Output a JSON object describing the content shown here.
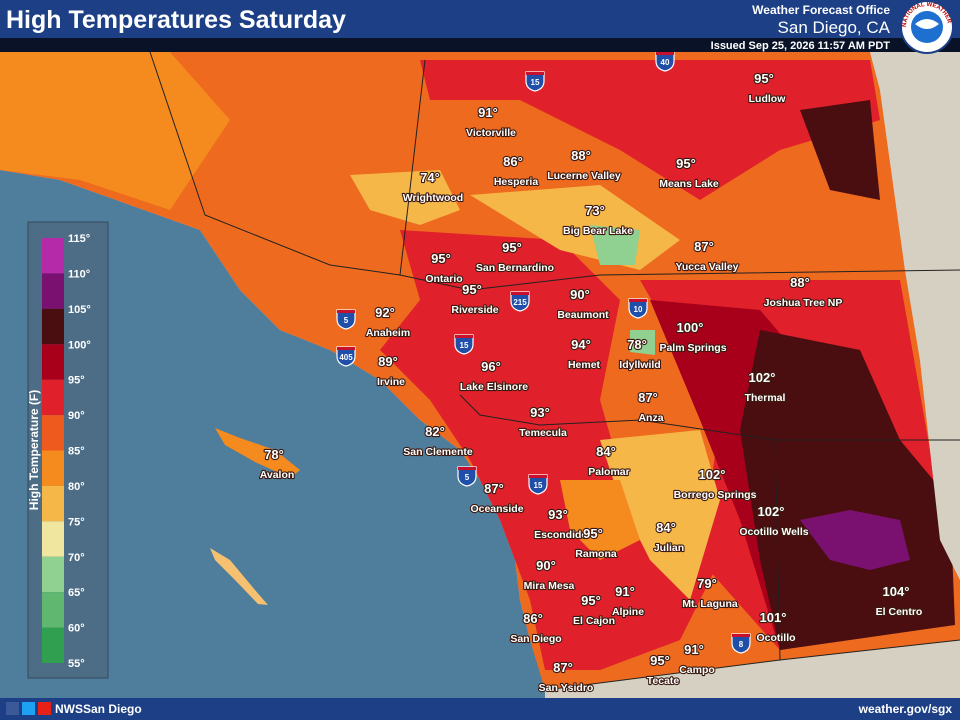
{
  "header": {
    "title": "High Temperatures Saturday",
    "office": "Weather Forecast Office",
    "location": "San Diego, CA",
    "issued": "Issued Sep 25, 2026 11:57 AM PDT",
    "logo": "NATIONAL WEATHER SERVICE"
  },
  "legend": {
    "title": "High Temperature (F)",
    "ticks": [
      "115°",
      "110°",
      "105°",
      "100°",
      "95°",
      "90°",
      "85°",
      "80°",
      "75°",
      "70°",
      "65°",
      "60°",
      "55°"
    ]
  },
  "cities": [
    {
      "temp": "95°",
      "name": "Ludlow"
    },
    {
      "temp": "91°",
      "name": "Victorville"
    },
    {
      "temp": "86°",
      "name": "Hesperia"
    },
    {
      "temp": "88°",
      "name": "Lucerne Valley"
    },
    {
      "temp": "95°",
      "name": "Means Lake"
    },
    {
      "temp": "74°",
      "name": "Wrightwood"
    },
    {
      "temp": "73°",
      "name": "Big Bear Lake"
    },
    {
      "temp": "95°",
      "name": "Ontario"
    },
    {
      "temp": "95°",
      "name": "San Bernardino"
    },
    {
      "temp": "87°",
      "name": "Yucca Valley"
    },
    {
      "temp": "88°",
      "name": "Joshua Tree NP"
    },
    {
      "temp": "95°",
      "name": "Riverside"
    },
    {
      "temp": "90°",
      "name": "Beaumont"
    },
    {
      "temp": "92°",
      "name": "Anaheim"
    },
    {
      "temp": "100°",
      "name": "Palm Springs"
    },
    {
      "temp": "94°",
      "name": "Hemet"
    },
    {
      "temp": "78°",
      "name": "Idyllwild"
    },
    {
      "temp": "89°",
      "name": "Irvine"
    },
    {
      "temp": "96°",
      "name": "Lake Elsinore"
    },
    {
      "temp": "102°",
      "name": "Thermal"
    },
    {
      "temp": "87°",
      "name": "Anza"
    },
    {
      "temp": "93°",
      "name": "Temecula"
    },
    {
      "temp": "82°",
      "name": "San Clemente"
    },
    {
      "temp": "78°",
      "name": "Avalon"
    },
    {
      "temp": "84°",
      "name": "Palomar"
    },
    {
      "temp": "102°",
      "name": "Borrego Springs"
    },
    {
      "temp": "87°",
      "name": "Oceanside"
    },
    {
      "temp": "93°",
      "name": "Escondido"
    },
    {
      "temp": "95°",
      "name": "Ramona"
    },
    {
      "temp": "84°",
      "name": "Julian"
    },
    {
      "temp": "102°",
      "name": "Ocotillo Wells"
    },
    {
      "temp": "90°",
      "name": "Mira Mesa"
    },
    {
      "temp": "79°",
      "name": "Mt. Laguna"
    },
    {
      "temp": "91°",
      "name": "Alpine"
    },
    {
      "temp": "95°",
      "name": "El Cajon"
    },
    {
      "temp": "104°",
      "name": "El Centro"
    },
    {
      "temp": "86°",
      "name": "San Diego"
    },
    {
      "temp": "101°",
      "name": "Ocotillo"
    },
    {
      "temp": "91°",
      "name": "Campo"
    },
    {
      "temp": "95°",
      "name": "Tecate"
    },
    {
      "temp": "87°",
      "name": "San Ysidro"
    }
  ],
  "highways": [
    "40",
    "15",
    "10",
    "215",
    "5",
    "405",
    "15",
    "5",
    "15",
    "8"
  ],
  "footer": {
    "social": "NWSSan Diego",
    "url": "weather.gov/sgx"
  }
}
